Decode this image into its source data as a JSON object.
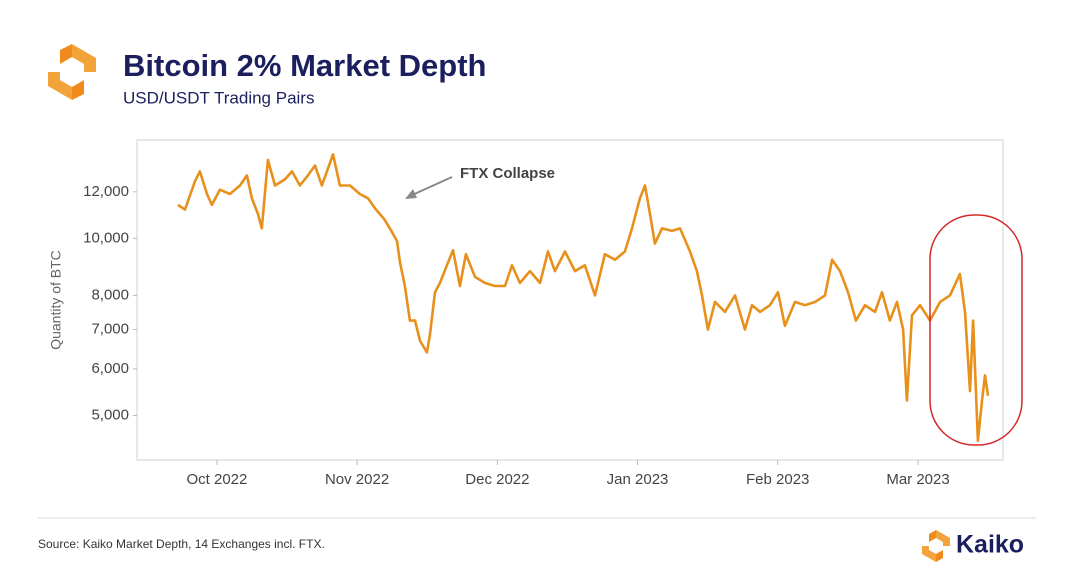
{
  "chart_data": {
    "type": "line",
    "title": "Bitcoin 2% Market Depth",
    "subtitle": "USD/USDT Trading Pairs",
    "y_label": "Quantity of BTC",
    "annotation": "FTX Collapse",
    "source": "Source: Kaiko Market Depth, 14 Exchanges incl. FTX.",
    "brand": "Kaiko",
    "color": "#e8901c",
    "log_scale_y": true,
    "grid": false,
    "x": [
      2022.7268,
      2022.731,
      2022.7369,
      2022.7399,
      2022.7441,
      2022.747,
      2022.7518,
      2022.7577,
      2022.7637,
      2022.7678,
      2022.7708,
      2022.7744,
      2022.7767,
      2022.7803,
      2022.7845,
      2022.7904,
      2022.7946,
      2022.7993,
      2022.8041,
      2022.8083,
      2022.8124,
      2022.819,
      2022.8231,
      2022.8291,
      2022.835,
      2022.8398,
      2022.8445,
      2022.8493,
      2022.8528,
      2022.857,
      2022.8588,
      2022.8617,
      2022.8647,
      2022.8677,
      2022.8707,
      2022.8748,
      2022.8766,
      2022.8796,
      2022.8826,
      2022.8867,
      2022.8903,
      2022.8944,
      2022.898,
      2022.9034,
      2022.9093,
      2022.9152,
      2022.9212,
      2022.9254,
      2022.9301,
      2022.9361,
      2022.942,
      2022.9468,
      2022.9509,
      2022.9569,
      2022.9628,
      2022.9687,
      2022.9747,
      2022.9806,
      2022.9866,
      2022.9925,
      2022.9967,
      2023.0014,
      2023.0044,
      2023.0074,
      2023.0103,
      2023.0145,
      2023.0205,
      2023.0252,
      2023.0312,
      2023.0353,
      2023.0383,
      2023.0418,
      2023.046,
      2023.052,
      2023.0579,
      2023.0638,
      2023.068,
      2023.0728,
      2023.0787,
      2023.0835,
      2023.0876,
      2023.0936,
      2023.0995,
      2023.1055,
      2023.1114,
      2023.1156,
      2023.1203,
      2023.1251,
      2023.1298,
      2023.1352,
      2023.1411,
      2023.1453,
      2023.15,
      2023.1542,
      2023.1578,
      2023.1601,
      2023.1631,
      2023.1679,
      2023.1738,
      2023.1798,
      2023.1857,
      2023.1916,
      2023.1946,
      2023.1976,
      2023.1994,
      2023.2023,
      2023.2047,
      2023.2065,
      2023.2083
    ],
    "values": [
      11400,
      11200,
      12500,
      13000,
      11900,
      11400,
      12100,
      11900,
      12300,
      12800,
      11700,
      11000,
      10400,
      13600,
      12300,
      12600,
      13000,
      12300,
      12800,
      13300,
      12300,
      13900,
      12300,
      12300,
      11900,
      11700,
      11200,
      10800,
      10400,
      9900,
      9100,
      8300,
      7250,
      7250,
      6700,
      6400,
      6850,
      8100,
      8400,
      9000,
      9550,
      8300,
      9400,
      8600,
      8400,
      8300,
      8300,
      9000,
      8400,
      8800,
      8400,
      9500,
      8800,
      9500,
      8800,
      9000,
      8000,
      9400,
      9200,
      9500,
      10400,
      11700,
      12300,
      11000,
      9800,
      10400,
      10300,
      10400,
      9500,
      8800,
      8000,
      7000,
      7800,
      7500,
      8000,
      7000,
      7700,
      7500,
      7700,
      8100,
      7100,
      7800,
      7700,
      7800,
      8000,
      9200,
      8800,
      8100,
      7250,
      7700,
      7500,
      8100,
      7250,
      7800,
      7000,
      5300,
      7400,
      7700,
      7250,
      7800,
      8000,
      8700,
      7500,
      5500,
      7250,
      4530,
      5300,
      5850,
      5400
    ],
    "xlim": [
      2022.7025,
      2023.2172
    ],
    "xticks": [
      {
        "value": 2022.75,
        "label": "Oct 2022"
      },
      {
        "value": 2022.8333,
        "label": "Nov 2022"
      },
      {
        "value": 2022.9167,
        "label": "Dec 2022"
      },
      {
        "value": 2023.0,
        "label": "Jan 2023"
      },
      {
        "value": 2023.0833,
        "label": "Feb 2023"
      },
      {
        "value": 2023.1667,
        "label": "Mar 2023"
      }
    ],
    "ylim": [
      4200,
      14700
    ],
    "yticks": [
      {
        "value": 5000,
        "label": "5,000"
      },
      {
        "value": 6000,
        "label": "6,000"
      },
      {
        "value": 7000,
        "label": "7,000"
      },
      {
        "value": 8000,
        "label": "8,000"
      },
      {
        "value": 10000,
        "label": "10,000"
      },
      {
        "value": 12000,
        "label": "12,000"
      }
    ]
  }
}
